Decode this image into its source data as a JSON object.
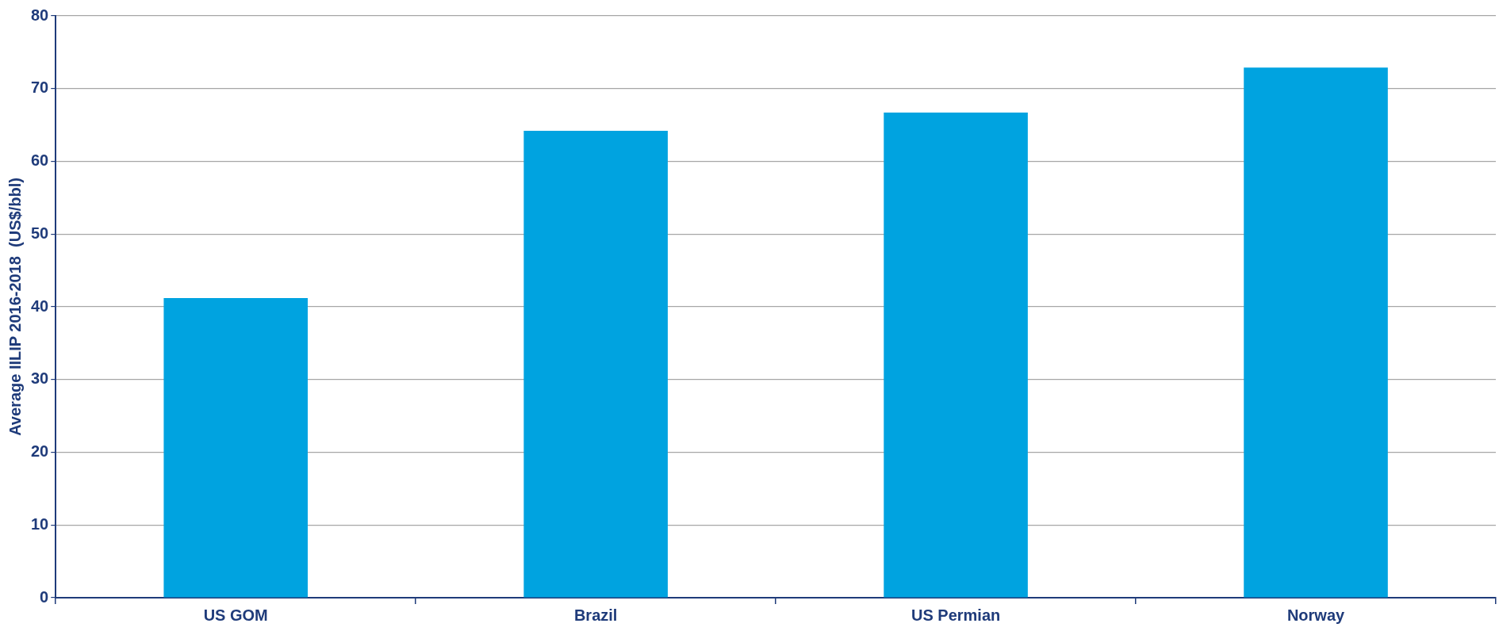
{
  "chart_data": {
    "type": "bar",
    "ylabel": "Average IILIP 2016-2018  (US$/bbl)",
    "categories": [
      "US GOM",
      "Brazil",
      "US Permian",
      "Norway"
    ],
    "values": [
      41.2,
      64.2,
      66.7,
      72.9
    ],
    "color": "#00a3e0",
    "ylim": [
      0,
      80
    ],
    "yticks": [
      0,
      10,
      20,
      30,
      40,
      50,
      60,
      70,
      80
    ],
    "grid": "y",
    "legend": false
  }
}
